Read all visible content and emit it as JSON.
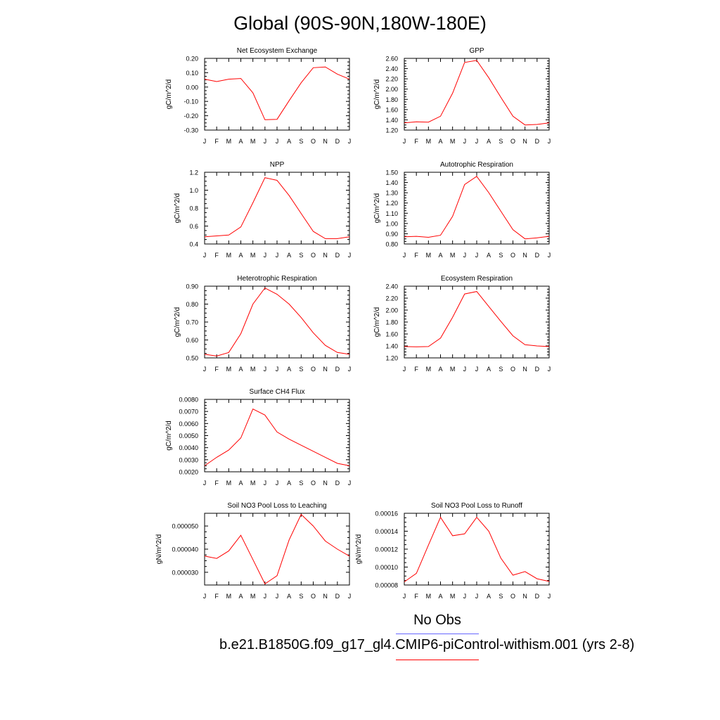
{
  "title": "Global (90S-90N,180W-180E)",
  "colors": {
    "model_line": "#ff0000",
    "obs_line": "#6666ff",
    "axis": "#000000"
  },
  "legend": {
    "obs_label": "No Obs",
    "case_label": "b.e21.B1850G.f09_g17_gl4.CMIP6-piControl-withism.001 (yrs 2-8)"
  },
  "chart_data": [
    {
      "type": "line",
      "title": "Net Ecosystem Exchange",
      "ylabel": "gC/m^2/d",
      "categories": [
        "J",
        "F",
        "M",
        "A",
        "M",
        "J",
        "J",
        "A",
        "S",
        "O",
        "N",
        "D",
        "J"
      ],
      "ylim": [
        -0.3,
        0.2
      ],
      "yticks": [
        "-0.30",
        "-0.20",
        "-0.10",
        "0.00",
        "0.10",
        "0.20"
      ],
      "values": [
        0.055,
        0.038,
        0.055,
        0.06,
        -0.04,
        -0.228,
        -0.225,
        -0.095,
        0.03,
        0.135,
        0.14,
        0.09,
        0.055
      ]
    },
    {
      "type": "line",
      "title": "GPP",
      "ylabel": "gC/m^2/d",
      "categories": [
        "J",
        "F",
        "M",
        "A",
        "M",
        "J",
        "J",
        "A",
        "S",
        "O",
        "N",
        "D",
        "J"
      ],
      "ylim": [
        1.2,
        2.6
      ],
      "yticks": [
        "1.20",
        "1.40",
        "1.60",
        "1.80",
        "2.00",
        "2.20",
        "2.40",
        "2.60"
      ],
      "values": [
        1.34,
        1.36,
        1.355,
        1.47,
        1.92,
        2.52,
        2.56,
        2.22,
        1.84,
        1.47,
        1.3,
        1.31,
        1.34
      ]
    },
    {
      "type": "line",
      "title": "NPP",
      "ylabel": "gC/m^2/d",
      "categories": [
        "J",
        "F",
        "M",
        "A",
        "M",
        "J",
        "J",
        "A",
        "S",
        "O",
        "N",
        "D",
        "J"
      ],
      "ylim": [
        0.4,
        1.2
      ],
      "yticks": [
        "0.4",
        "0.6",
        "0.8",
        "1.0",
        "1.2"
      ],
      "values": [
        0.48,
        0.49,
        0.5,
        0.59,
        0.86,
        1.14,
        1.11,
        0.94,
        0.74,
        0.54,
        0.46,
        0.46,
        0.48
      ]
    },
    {
      "type": "line",
      "title": "Autotrophic Respiration",
      "ylabel": "gC/m^2/d",
      "categories": [
        "J",
        "F",
        "M",
        "A",
        "M",
        "J",
        "J",
        "A",
        "S",
        "O",
        "N",
        "D",
        "J"
      ],
      "ylim": [
        0.8,
        1.5
      ],
      "yticks": [
        "0.80",
        "0.90",
        "1.00",
        "1.10",
        "1.20",
        "1.30",
        "1.40",
        "1.50"
      ],
      "values": [
        0.87,
        0.875,
        0.865,
        0.885,
        1.07,
        1.38,
        1.46,
        1.3,
        1.12,
        0.94,
        0.85,
        0.86,
        0.875
      ]
    },
    {
      "type": "line",
      "title": "Heterotrophic Respiration",
      "ylabel": "gC/m^2/d",
      "categories": [
        "J",
        "F",
        "M",
        "A",
        "M",
        "J",
        "J",
        "A",
        "S",
        "O",
        "N",
        "D",
        "J"
      ],
      "ylim": [
        0.5,
        0.9
      ],
      "yticks": [
        "0.50",
        "0.60",
        "0.70",
        "0.80",
        "0.90"
      ],
      "values": [
        0.52,
        0.51,
        0.53,
        0.635,
        0.8,
        0.89,
        0.855,
        0.8,
        0.725,
        0.64,
        0.57,
        0.53,
        0.52
      ]
    },
    {
      "type": "line",
      "title": "Ecosystem Respiration",
      "ylabel": "gC/m^2/d",
      "categories": [
        "J",
        "F",
        "M",
        "A",
        "M",
        "J",
        "J",
        "A",
        "S",
        "O",
        "N",
        "D",
        "J"
      ],
      "ylim": [
        1.2,
        2.4
      ],
      "yticks": [
        "1.20",
        "1.40",
        "1.60",
        "1.80",
        "2.00",
        "2.20",
        "2.40"
      ],
      "values": [
        1.39,
        1.385,
        1.39,
        1.53,
        1.88,
        2.27,
        2.31,
        2.06,
        1.81,
        1.57,
        1.42,
        1.4,
        1.39
      ]
    },
    {
      "type": "line",
      "title": "Surface CH4 Flux",
      "ylabel": "gC/m^2/d",
      "categories": [
        "J",
        "F",
        "M",
        "A",
        "M",
        "J",
        "J",
        "A",
        "S",
        "O",
        "N",
        "D",
        "J"
      ],
      "ylim": [
        0.002,
        0.008
      ],
      "yticks": [
        "0.0020",
        "0.0030",
        "0.0040",
        "0.0050",
        "0.0060",
        "0.0070",
        "0.0080"
      ],
      "values": [
        0.0025,
        0.0032,
        0.0038,
        0.0048,
        0.0072,
        0.0067,
        0.0053,
        0.0047,
        0.0042,
        0.0037,
        0.0032,
        0.0027,
        0.0025
      ]
    },
    {
      "type": "line",
      "title": "Soil NO3 Pool Loss to Leaching",
      "ylabel": "gN/m^2/d",
      "categories": [
        "J",
        "F",
        "M",
        "A",
        "M",
        "J",
        "J",
        "A",
        "S",
        "O",
        "N",
        "D",
        "J"
      ],
      "ylim": [
        2.45e-05,
        5.55e-05
      ],
      "yticks": [
        "0.000030",
        "0.000040",
        "0.000050"
      ],
      "ytick_values": [
        3e-05,
        4e-05,
        5e-05
      ],
      "values": [
        3.7e-05,
        3.6e-05,
        3.92e-05,
        4.6e-05,
        3.55e-05,
        2.5e-05,
        2.85e-05,
        4.4e-05,
        5.5e-05,
        5e-05,
        4.35e-05,
        4e-05,
        3.7e-05
      ]
    },
    {
      "type": "line",
      "title": "Soil NO3 Pool Loss to Runoff",
      "ylabel": "gN/m^2/d",
      "categories": [
        "J",
        "F",
        "M",
        "A",
        "M",
        "J",
        "J",
        "A",
        "S",
        "O",
        "N",
        "D",
        "J"
      ],
      "ylim": [
        8e-05,
        0.00016
      ],
      "yticks": [
        "0.00008",
        "0.00010",
        "0.00012",
        "0.00014",
        "0.00016"
      ],
      "values": [
        8.35e-05,
        9.3e-05,
        0.0001245,
        0.0001555,
        0.000135,
        0.000137,
        0.0001555,
        0.00014,
        0.00011,
        9.1e-05,
        9.5e-05,
        8.7e-05,
        8.4e-05
      ]
    }
  ]
}
